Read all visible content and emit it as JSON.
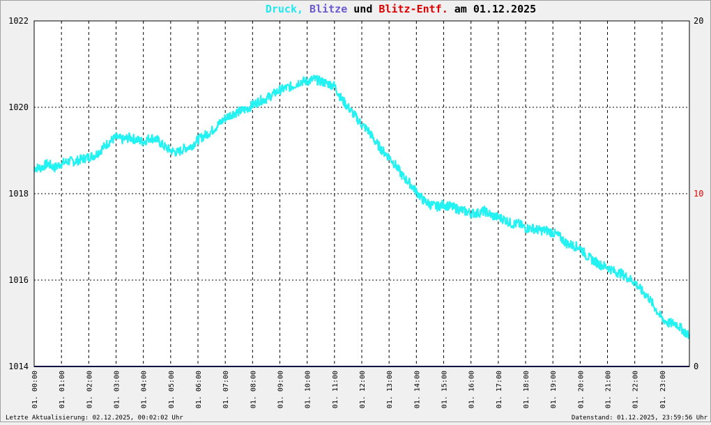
{
  "title": {
    "parts": [
      {
        "text": "Druck,",
        "color": "#22e6f0"
      },
      {
        "text": " ",
        "color": "#000000"
      },
      {
        "text": "Blitze",
        "color": "#6a5acd"
      },
      {
        "text": " und ",
        "color": "#000000"
      },
      {
        "text": "Blitz-Entf.",
        "color": "#dd0000"
      },
      {
        "text": " am 01.12.2025",
        "color": "#000000"
      }
    ]
  },
  "footer": {
    "left": "Letzte Aktualisierung: 02.12.2025, 00:02:02 Uhr",
    "right": "Datenstand: 01.12.2025, 23:59:56 Uhr"
  },
  "colors": {
    "pressure": "#22f2f2",
    "lightning": "#1a1a80",
    "right_axis": "#dd0000",
    "grid": "#000000",
    "background": "#ffffff"
  },
  "chart_data": {
    "type": "line",
    "x_tick_labels": [
      "01. 00:00",
      "01. 01:00",
      "01. 02:00",
      "01. 03:00",
      "01. 04:00",
      "01. 05:00",
      "01. 06:00",
      "01. 07:00",
      "01. 08:00",
      "01. 09:00",
      "01. 10:00",
      "01. 11:00",
      "01. 12:00",
      "01. 13:00",
      "01. 14:00",
      "01. 15:00",
      "01. 16:00",
      "01. 17:00",
      "01. 18:00",
      "01. 19:00",
      "01. 20:00",
      "01. 21:00",
      "01. 22:00",
      "01. 23:00"
    ],
    "x_range_hours": [
      0,
      24
    ],
    "y_left": {
      "range": [
        1014,
        1022
      ],
      "ticks": [
        "1014",
        "1016",
        "1018",
        "1020",
        "1022"
      ]
    },
    "y_right": {
      "range": [
        0,
        20
      ],
      "ticks": [
        "0",
        "10",
        "20"
      ]
    },
    "series": [
      {
        "name": "Druck",
        "axis": "left",
        "color": "#22f2f2",
        "x": [
          0.0,
          0.25,
          0.5,
          0.75,
          1.0,
          1.25,
          1.5,
          1.75,
          2.0,
          2.25,
          2.5,
          2.75,
          3.0,
          3.25,
          3.5,
          3.75,
          4.0,
          4.25,
          4.5,
          4.75,
          5.0,
          5.25,
          5.5,
          5.75,
          6.0,
          6.25,
          6.5,
          6.75,
          7.0,
          7.25,
          7.5,
          7.75,
          8.0,
          8.25,
          8.5,
          8.75,
          9.0,
          9.25,
          9.5,
          9.75,
          10.0,
          10.25,
          10.5,
          10.75,
          11.0,
          11.25,
          11.5,
          11.75,
          12.0,
          12.25,
          12.5,
          12.75,
          13.0,
          13.25,
          13.5,
          13.75,
          14.0,
          14.25,
          14.5,
          14.75,
          15.0,
          15.25,
          15.5,
          15.75,
          16.0,
          16.25,
          16.5,
          16.75,
          17.0,
          17.25,
          17.5,
          17.75,
          18.0,
          18.25,
          18.5,
          18.75,
          19.0,
          19.25,
          19.5,
          19.75,
          20.0,
          20.25,
          20.5,
          20.75,
          21.0,
          21.25,
          21.5,
          21.75,
          22.0,
          22.25,
          22.5,
          22.75,
          23.0,
          23.25,
          23.5,
          23.75,
          24.0
        ],
        "y": [
          1018.6,
          1018.6,
          1018.7,
          1018.6,
          1018.7,
          1018.75,
          1018.75,
          1018.8,
          1018.85,
          1018.9,
          1019.05,
          1019.2,
          1019.3,
          1019.25,
          1019.3,
          1019.25,
          1019.2,
          1019.3,
          1019.25,
          1019.1,
          1019.0,
          1018.95,
          1019.05,
          1019.1,
          1019.25,
          1019.35,
          1019.45,
          1019.6,
          1019.75,
          1019.85,
          1019.9,
          1019.95,
          1020.05,
          1020.15,
          1020.2,
          1020.3,
          1020.4,
          1020.45,
          1020.5,
          1020.6,
          1020.6,
          1020.65,
          1020.6,
          1020.55,
          1020.5,
          1020.2,
          1020.0,
          1019.8,
          1019.6,
          1019.45,
          1019.2,
          1019.0,
          1018.85,
          1018.65,
          1018.4,
          1018.25,
          1018.05,
          1017.85,
          1017.75,
          1017.7,
          1017.75,
          1017.7,
          1017.65,
          1017.6,
          1017.55,
          1017.55,
          1017.6,
          1017.5,
          1017.45,
          1017.4,
          1017.3,
          1017.3,
          1017.2,
          1017.2,
          1017.15,
          1017.15,
          1017.1,
          1017.0,
          1016.85,
          1016.8,
          1016.75,
          1016.55,
          1016.45,
          1016.35,
          1016.3,
          1016.2,
          1016.15,
          1016.05,
          1015.95,
          1015.75,
          1015.6,
          1015.35,
          1015.1,
          1015.0,
          1015.0,
          1014.85,
          1014.7
        ]
      },
      {
        "name": "Blitze",
        "axis": "right",
        "color": "#1a1a80",
        "x": [
          0,
          24
        ],
        "y": [
          0,
          0
        ]
      }
    ],
    "grid": true,
    "legend": "title"
  }
}
